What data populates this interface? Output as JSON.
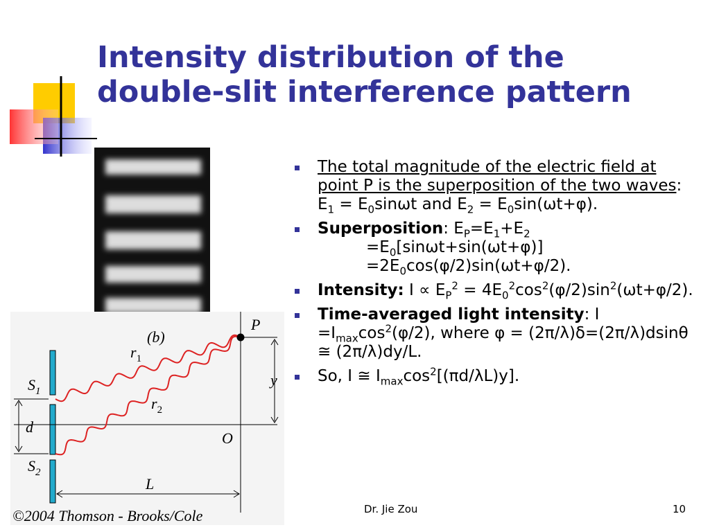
{
  "title": [
    "Intensity distribution of the",
    "double-slit interference pattern"
  ],
  "bullets": [
    [
      "The total magnitude of the electric field at point P is the superposition of the two waves",
      ": E",
      "1",
      " = E",
      "0",
      "sinωt and E",
      "2",
      " = E",
      "0",
      "sin(ωt+φ)."
    ],
    [
      "Superposition",
      ": E",
      "P",
      "=E",
      "1",
      "+E",
      "2",
      "=E",
      "0",
      "[sinωt+sin(ωt+φ)]",
      "=2E",
      "0",
      "cos(φ/2)sin(ωt+φ/2)."
    ],
    [
      "Intensity:",
      " I ∝ E",
      "P",
      "2",
      " = 4E",
      "0",
      "2",
      "cos",
      "2",
      "(φ/2)sin",
      "2",
      "(ωt+φ/2)."
    ],
    [
      "Time-averaged light intensity",
      ": I =I",
      "max",
      "cos",
      "2",
      "(φ/2), where φ = (2π/λ)δ=(2π/λ)dsinθ ≅ (2π/λ)dy/L."
    ],
    [
      "So, I ≅ I",
      "max",
      "cos",
      "2",
      "[(πd/λL)y]."
    ]
  ],
  "figure": {
    "photo_label": "(b)",
    "P": "P",
    "r1": [
      "r",
      "1"
    ],
    "r2": [
      "r",
      "2"
    ],
    "S1": [
      "S",
      "1"
    ],
    "S2": [
      "S",
      "2"
    ],
    "d": "d",
    "O": "O",
    "L": "L",
    "y": "y",
    "credit": "©2004 Thomson - Brooks/Cole"
  },
  "footer": {
    "author": "Dr. Jie Zou",
    "page": "10"
  }
}
